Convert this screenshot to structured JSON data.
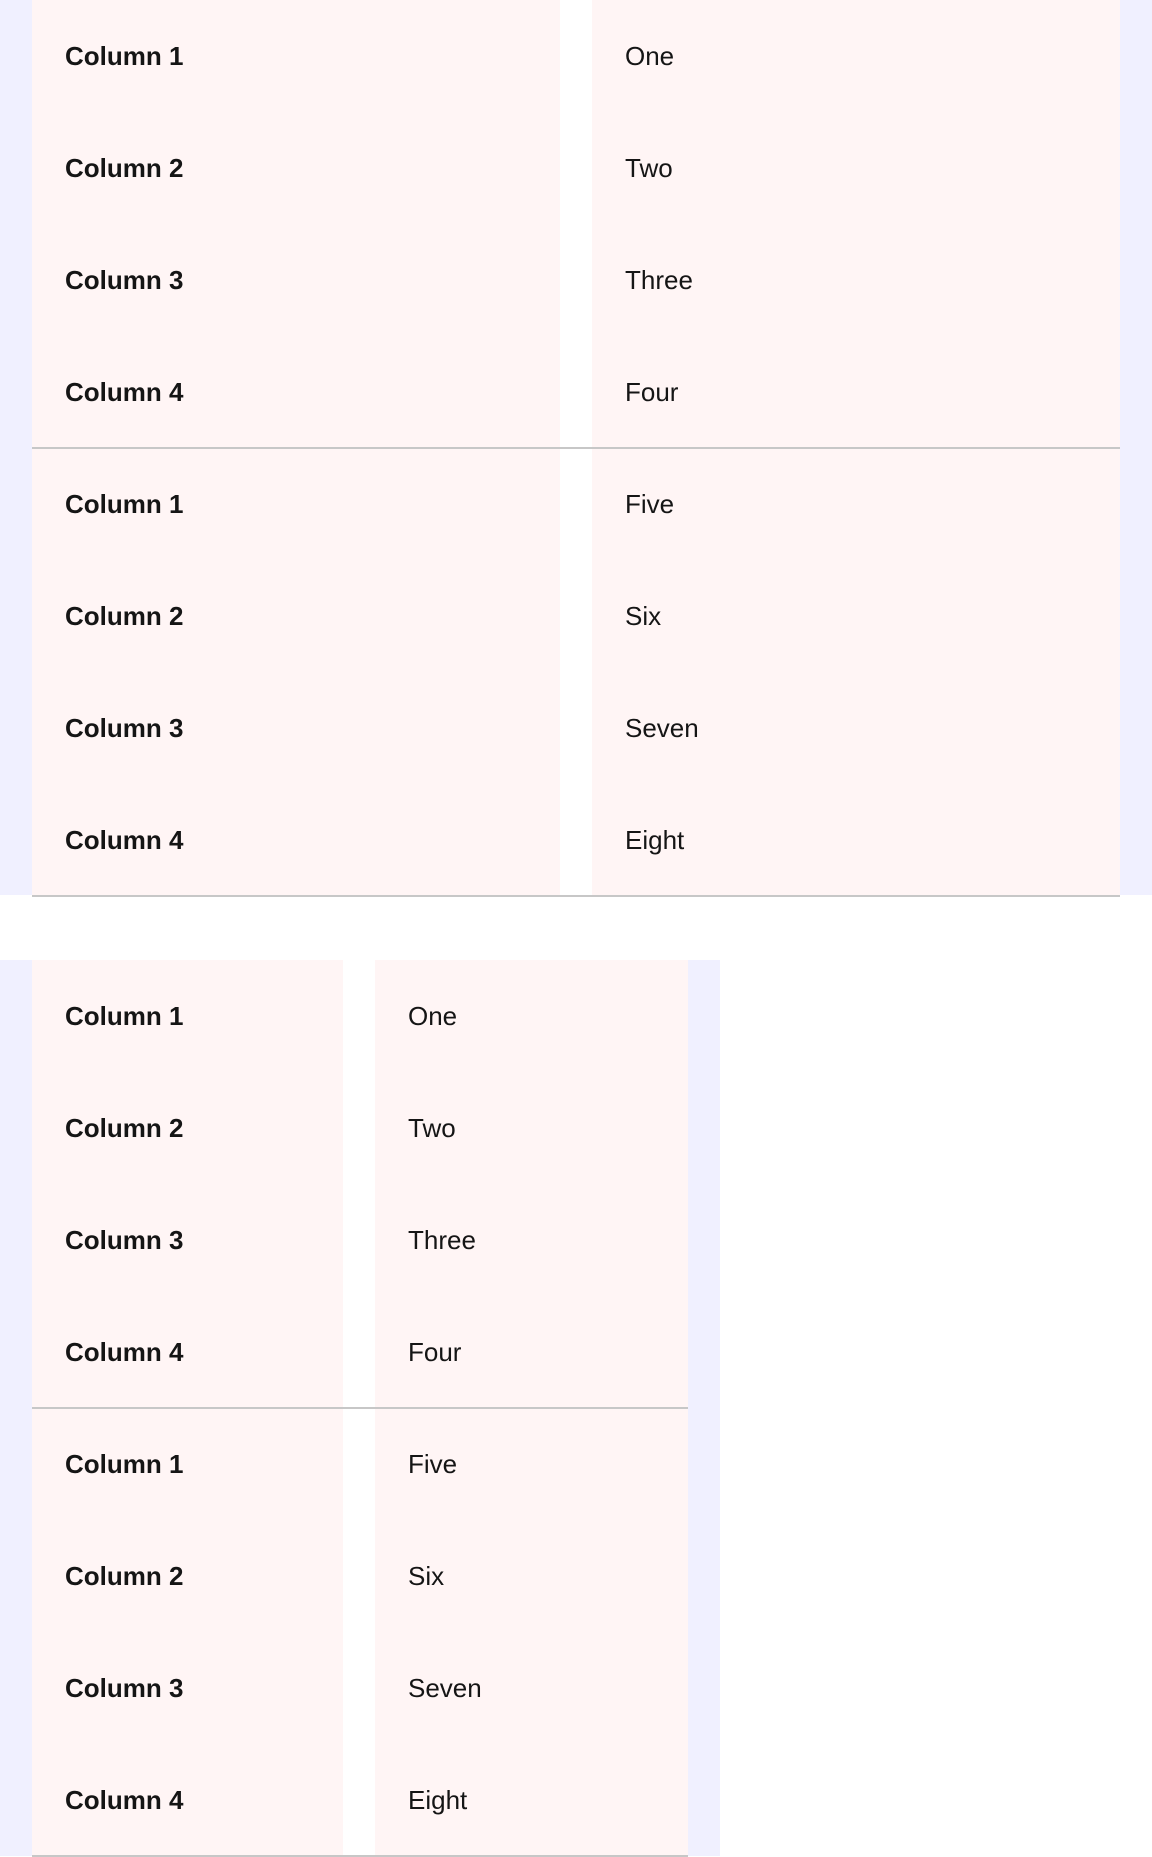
{
  "tables": [
    {
      "groups": [
        {
          "rows": [
            {
              "key": "Column 1",
              "value": "One"
            },
            {
              "key": "Column 2",
              "value": "Two"
            },
            {
              "key": "Column 3",
              "value": "Three"
            },
            {
              "key": "Column 4",
              "value": "Four"
            }
          ]
        },
        {
          "rows": [
            {
              "key": "Column 1",
              "value": "Five"
            },
            {
              "key": "Column 2",
              "value": "Six"
            },
            {
              "key": "Column 3",
              "value": "Seven"
            },
            {
              "key": "Column 4",
              "value": "Eight"
            }
          ]
        }
      ]
    },
    {
      "groups": [
        {
          "rows": [
            {
              "key": "Column 1",
              "value": "One"
            },
            {
              "key": "Column 2",
              "value": "Two"
            },
            {
              "key": "Column 3",
              "value": "Three"
            },
            {
              "key": "Column 4",
              "value": "Four"
            }
          ]
        },
        {
          "rows": [
            {
              "key": "Column 1",
              "value": "Five"
            },
            {
              "key": "Column 2",
              "value": "Six"
            },
            {
              "key": "Column 3",
              "value": "Seven"
            },
            {
              "key": "Column 4",
              "value": "Eight"
            }
          ]
        }
      ]
    }
  ],
  "colors": {
    "page_bg": "#f0f0ff",
    "cell_bg": "#fff5f5",
    "divider": "#c7c7c7",
    "text": "#151515"
  }
}
